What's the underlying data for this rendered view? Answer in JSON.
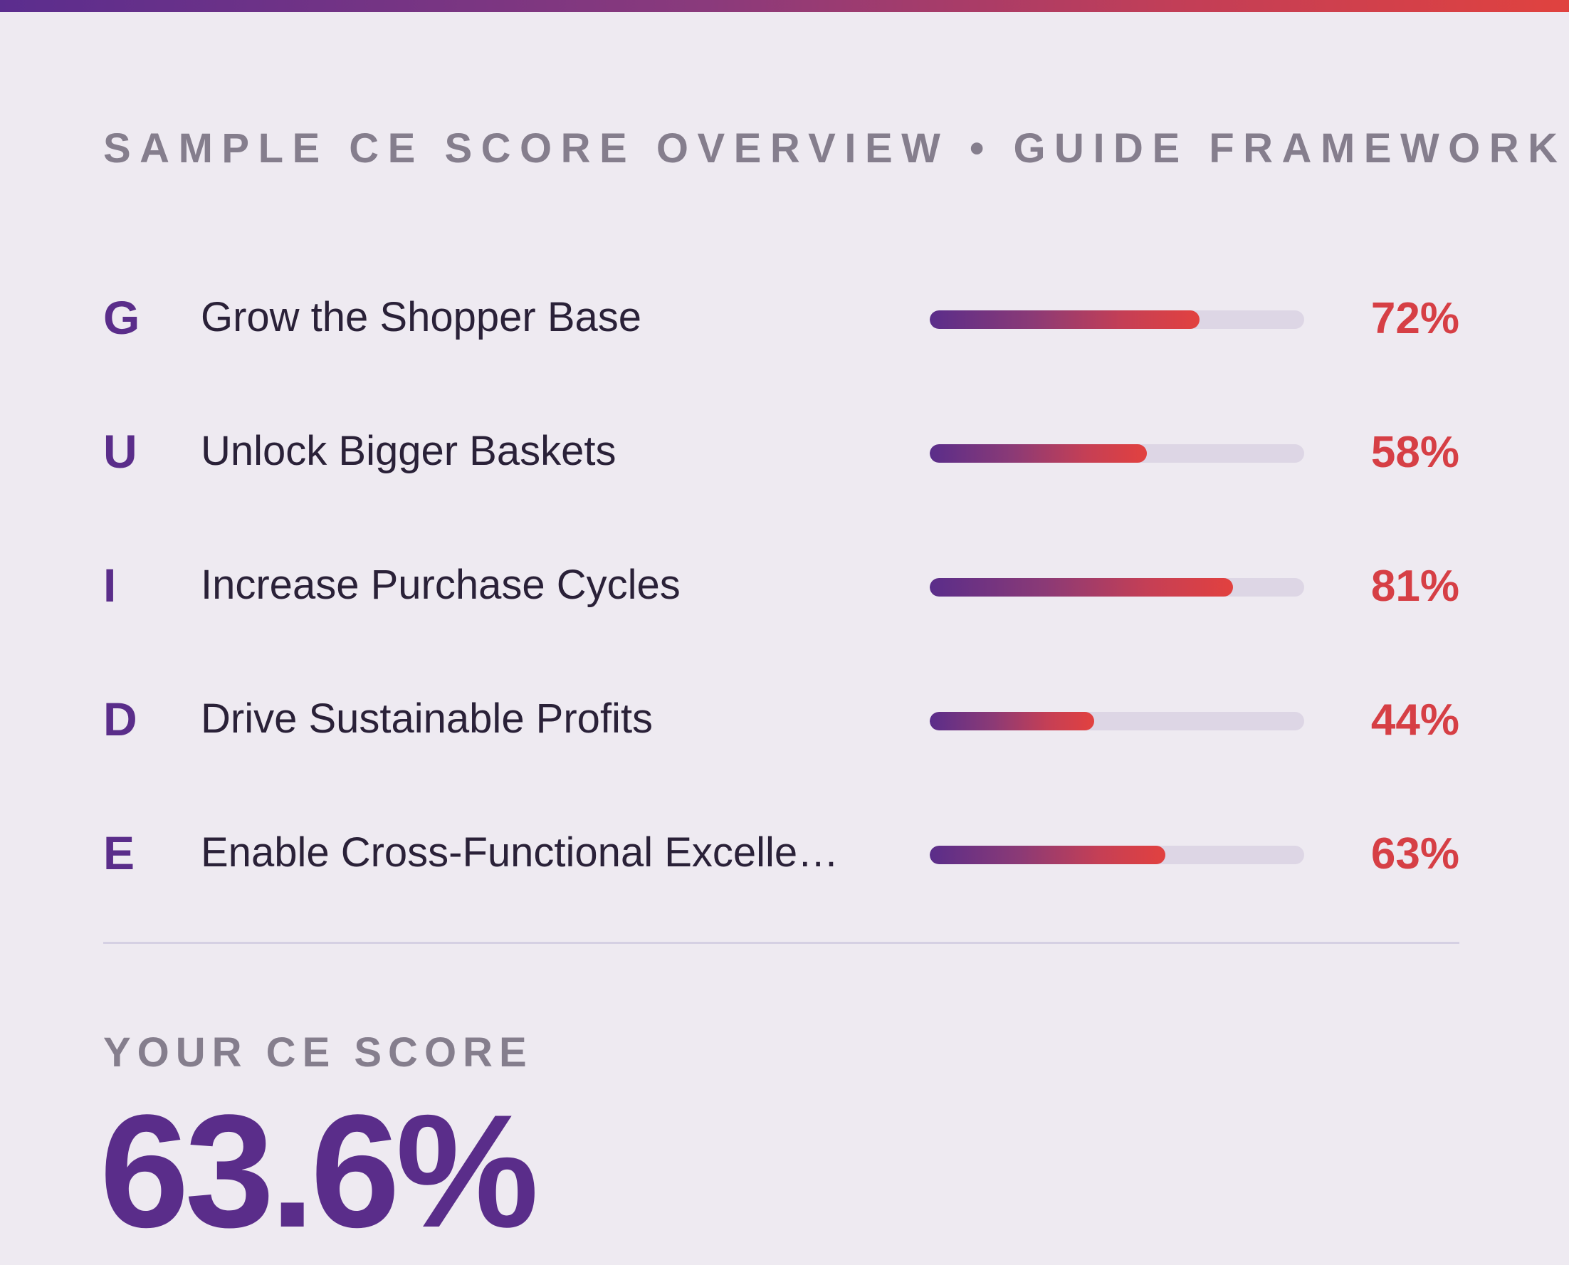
{
  "header": {
    "title": "SAMPLE CE SCORE OVERVIEW • GUIDE FRAMEWORK"
  },
  "pillars": [
    {
      "letter": "G",
      "label": "Grow the Shopper Base",
      "percent_text": "72%",
      "progress": 0.72
    },
    {
      "letter": "U",
      "label": "Unlock Bigger Baskets",
      "percent_text": "58%",
      "progress": 0.58
    },
    {
      "letter": "I",
      "label": "Increase Purchase Cycles",
      "percent_text": "81%",
      "progress": 0.81
    },
    {
      "letter": "D",
      "label": "Drive Sustainable Profits",
      "percent_text": "44%",
      "progress": 0.44
    },
    {
      "letter": "E",
      "label": "Enable Cross-Functional Excelle…",
      "percent_text": "63%",
      "progress": 0.63
    }
  ],
  "score": {
    "label": "YOUR CE SCORE",
    "value": "63.6%"
  },
  "colors": {
    "accent_purple": "#5a2d8a",
    "accent_red": "#e2413f",
    "percent_text": "#d63f45",
    "background": "#eeeaf1",
    "track": "#ddd6e5"
  }
}
